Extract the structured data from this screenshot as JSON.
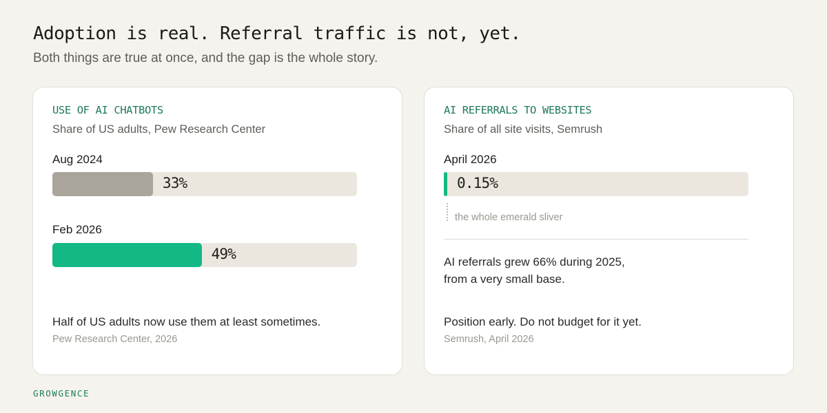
{
  "header": {
    "title": "Adoption is real. Referral traffic is not, yet.",
    "subtitle": "Both things are true at once, and the gap is the whole story."
  },
  "left_card": {
    "kicker": "USE OF AI CHATBOTS",
    "source": "Share of US adults, Pew Research Center",
    "takeaway": "Half of US adults now use them at least sometimes.",
    "citation": "Pew Research Center, 2026"
  },
  "right_card": {
    "kicker": "AI REFERRALS TO WEBSITES",
    "source": "Share of all site visits, Semrush",
    "sliver_note": "the whole emerald sliver",
    "growth_line1": "AI referrals grew 66% during 2025,",
    "growth_line2": "from a very small base.",
    "takeaway": "Position early. Do not budget for it yet.",
    "citation": "Semrush, April 2026"
  },
  "brand": "GROWGENCE",
  "colors": {
    "accent": "#13b884",
    "accent_text": "#1f7a5b",
    "past_bar": "#aaa59a",
    "track": "#ece7de",
    "background": "#f5f3ee"
  },
  "chart_data": [
    {
      "type": "bar",
      "orientation": "horizontal",
      "title": "USE OF AI CHATBOTS",
      "subtitle": "Share of US adults, Pew Research Center",
      "categories": [
        "Aug 2024",
        "Feb 2026"
      ],
      "values": [
        33,
        49
      ],
      "value_labels": [
        "33%",
        "49%"
      ],
      "xlim": [
        0,
        100
      ],
      "bar_colors": [
        "#aaa59a",
        "#13b884"
      ]
    },
    {
      "type": "bar",
      "orientation": "horizontal",
      "title": "AI REFERRALS TO WEBSITES",
      "subtitle": "Share of all site visits, Semrush",
      "categories": [
        "April 2026"
      ],
      "values": [
        0.15
      ],
      "value_labels": [
        "0.15%"
      ],
      "xlim": [
        0,
        100
      ],
      "bar_colors": [
        "#13b884"
      ]
    }
  ]
}
